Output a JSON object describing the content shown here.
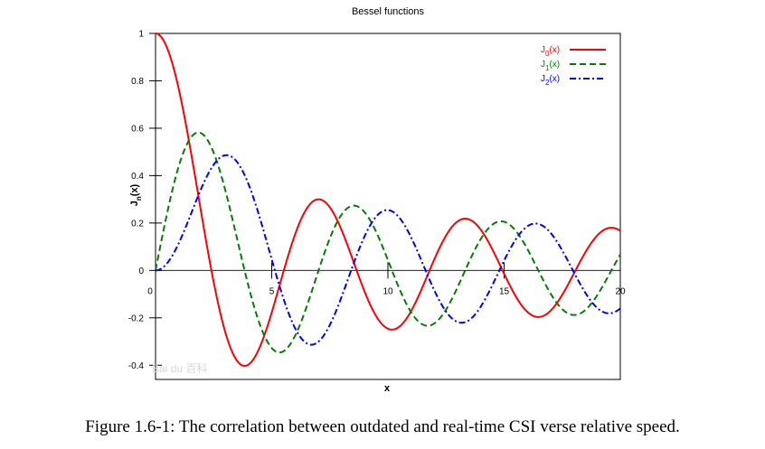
{
  "chart_data": {
    "type": "line",
    "title": "Bessel functions",
    "xlabel": "x",
    "ylabel": "J_n(x)",
    "xlim": [
      0,
      20
    ],
    "ylim": [
      -0.46,
      1.0
    ],
    "x_ticks": [
      0,
      5,
      10,
      15,
      20
    ],
    "x_tick_labels": [
      "0",
      "5",
      "10",
      "15",
      "20"
    ],
    "y_ticks": [
      1,
      0.8,
      0.6,
      0.4,
      0.2,
      0,
      -0.2,
      -0.4
    ],
    "y_tick_labels": [
      "1",
      "0.8",
      "0.6",
      "0.4",
      "0.2",
      "0",
      "-0.2",
      "-0.4"
    ],
    "grid": false,
    "legend_position": "top-right",
    "legend": [
      {
        "base": "J",
        "sub": "0",
        "rest": "(x)",
        "color": "#ff0000",
        "dash": "solid"
      },
      {
        "base": "J",
        "sub": "1",
        "rest": "(x)",
        "color": "#008000",
        "dash": "dashed"
      },
      {
        "base": "J",
        "sub": "2",
        "rest": "(x)",
        "color": "#0000ff",
        "dash": "dashdot"
      }
    ],
    "series": [
      {
        "name": "J0(x)",
        "order": 0,
        "color": "#ff0000"
      },
      {
        "name": "J1(x)",
        "order": 1,
        "color": "#008000"
      },
      {
        "name": "J2(x)",
        "order": 2,
        "color": "#0000ff"
      }
    ]
  },
  "watermark": "Bai du 百科",
  "caption": "Figure 1.6-1: The correlation between outdated and real-time CSI verse relative speed."
}
